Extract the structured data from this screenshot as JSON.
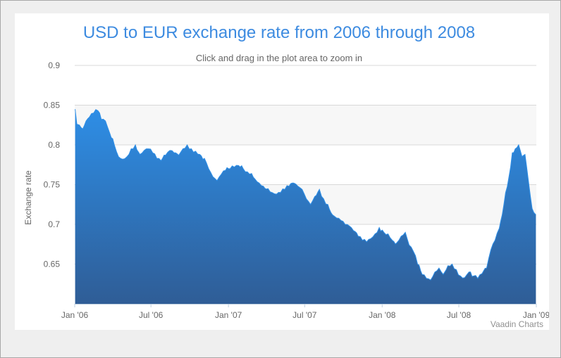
{
  "chart_data": {
    "type": "area",
    "title": "USD to EUR exchange rate from 2006 through 2008",
    "subtitle": "Click and drag in the plot area to zoom in",
    "xlabel": "",
    "ylabel": "Exchange rate",
    "x_ticks": [
      "Jan '06",
      "Jul '06",
      "Jan '07",
      "Jul '07",
      "Jan '08",
      "Jul '08",
      "Jan '09"
    ],
    "y_ticks": [
      "0.65",
      "0.7",
      "0.75",
      "0.8",
      "0.85",
      "0.9"
    ],
    "ylim": [
      0.6,
      0.9
    ],
    "xlim": [
      "2006-01-01",
      "2009-01-01"
    ],
    "grid": true,
    "plot_bands": [
      {
        "from": 0.8,
        "to": 0.85,
        "color": "#f7f7f7"
      },
      {
        "from": 0.7,
        "to": 0.75,
        "color": "#f7f7f7"
      }
    ],
    "series": [
      {
        "color_top": "#2e8ee6",
        "color_bottom": "#2f5d96",
        "x": [
          "2006-01-02",
          "2006-01-06",
          "2006-01-12",
          "2006-01-20",
          "2006-01-28",
          "2006-02-05",
          "2006-02-15",
          "2006-02-25",
          "2006-03-05",
          "2006-03-15",
          "2006-03-25",
          "2006-04-05",
          "2006-04-15",
          "2006-04-25",
          "2006-05-05",
          "2006-05-15",
          "2006-05-25",
          "2006-06-05",
          "2006-06-15",
          "2006-06-25",
          "2006-07-05",
          "2006-07-15",
          "2006-07-25",
          "2006-08-05",
          "2006-08-15",
          "2006-08-25",
          "2006-09-05",
          "2006-09-15",
          "2006-09-25",
          "2006-10-05",
          "2006-10-15",
          "2006-10-25",
          "2006-11-05",
          "2006-11-15",
          "2006-11-25",
          "2006-12-05",
          "2006-12-15",
          "2006-12-25",
          "2007-01-05",
          "2007-01-15",
          "2007-01-25",
          "2007-02-05",
          "2007-02-15",
          "2007-02-25",
          "2007-03-05",
          "2007-03-15",
          "2007-03-25",
          "2007-04-05",
          "2007-04-15",
          "2007-04-25",
          "2007-05-05",
          "2007-05-15",
          "2007-05-25",
          "2007-06-05",
          "2007-06-15",
          "2007-06-25",
          "2007-07-05",
          "2007-07-15",
          "2007-07-25",
          "2007-08-05",
          "2007-08-15",
          "2007-08-25",
          "2007-09-05",
          "2007-09-15",
          "2007-09-25",
          "2007-10-05",
          "2007-10-15",
          "2007-10-25",
          "2007-11-05",
          "2007-11-15",
          "2007-11-25",
          "2007-12-05",
          "2007-12-15",
          "2007-12-25",
          "2008-01-05",
          "2008-01-15",
          "2008-01-25",
          "2008-02-05",
          "2008-02-15",
          "2008-02-25",
          "2008-03-05",
          "2008-03-15",
          "2008-03-25",
          "2008-04-05",
          "2008-04-15",
          "2008-04-25",
          "2008-05-05",
          "2008-05-15",
          "2008-05-25",
          "2008-06-05",
          "2008-06-15",
          "2008-06-25",
          "2008-07-05",
          "2008-07-15",
          "2008-07-25",
          "2008-08-05",
          "2008-08-15",
          "2008-08-25",
          "2008-09-05",
          "2008-09-15",
          "2008-09-25",
          "2008-10-05",
          "2008-10-12",
          "2008-10-20",
          "2008-10-28",
          "2008-11-05",
          "2008-11-12",
          "2008-11-20",
          "2008-11-28",
          "2008-12-05",
          "2008-12-12",
          "2008-12-18",
          "2008-12-22",
          "2008-12-26",
          "2008-12-31"
        ],
        "values": [
          0.845,
          0.826,
          0.825,
          0.82,
          0.83,
          0.835,
          0.84,
          0.843,
          0.832,
          0.83,
          0.815,
          0.8,
          0.785,
          0.782,
          0.785,
          0.795,
          0.8,
          0.788,
          0.793,
          0.795,
          0.79,
          0.783,
          0.78,
          0.787,
          0.793,
          0.79,
          0.787,
          0.795,
          0.8,
          0.795,
          0.792,
          0.788,
          0.783,
          0.77,
          0.76,
          0.755,
          0.763,
          0.768,
          0.77,
          0.772,
          0.774,
          0.77,
          0.766,
          0.764,
          0.757,
          0.752,
          0.748,
          0.745,
          0.74,
          0.738,
          0.74,
          0.744,
          0.748,
          0.752,
          0.748,
          0.744,
          0.732,
          0.725,
          0.735,
          0.744,
          0.732,
          0.725,
          0.712,
          0.708,
          0.705,
          0.7,
          0.698,
          0.692,
          0.685,
          0.68,
          0.678,
          0.682,
          0.688,
          0.696,
          0.69,
          0.688,
          0.68,
          0.677,
          0.685,
          0.69,
          0.674,
          0.666,
          0.65,
          0.637,
          0.632,
          0.63,
          0.64,
          0.645,
          0.637,
          0.648,
          0.65,
          0.643,
          0.635,
          0.633,
          0.64,
          0.635,
          0.632,
          0.638,
          0.645,
          0.668,
          0.68,
          0.695,
          0.712,
          0.74,
          0.76,
          0.79,
          0.795,
          0.8,
          0.785,
          0.788,
          0.76,
          0.735,
          0.72,
          0.715,
          0.712
        ]
      }
    ]
  },
  "credits": "Vaadin Charts"
}
